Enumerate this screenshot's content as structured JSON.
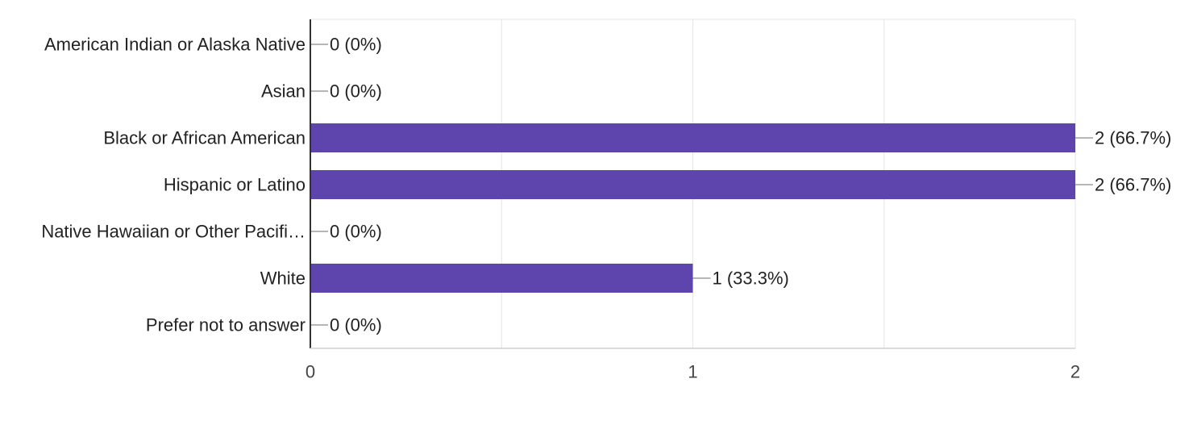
{
  "chart_data": {
    "type": "bar",
    "orientation": "horizontal",
    "categories": [
      "American Indian or Alaska Native",
      "Asian",
      "Black or African American",
      "Hispanic or Latino",
      "Native Hawaiian or Other Pacifi…",
      "White",
      "Prefer not to answer"
    ],
    "values": [
      0,
      0,
      2,
      2,
      0,
      1,
      0
    ],
    "data_labels": [
      "0 (0%)",
      "0 (0%)",
      "2 (66.7%)",
      "2 (66.7%)",
      "0 (0%)",
      "1 (33.3%)",
      "0 (0%)"
    ],
    "xlim": [
      0,
      2
    ],
    "x_ticks": [
      {
        "value": 0,
        "label": "0"
      },
      {
        "value": 1,
        "label": "1"
      },
      {
        "value": 2,
        "label": "2"
      }
    ],
    "grid": true,
    "legend": "none",
    "colors": {
      "bar": "#5e45ad",
      "grid": "#e6e6e6",
      "axis": "#333333",
      "leader": "#9e9e9e",
      "text": "#222222",
      "tick_text": "#444444"
    }
  }
}
